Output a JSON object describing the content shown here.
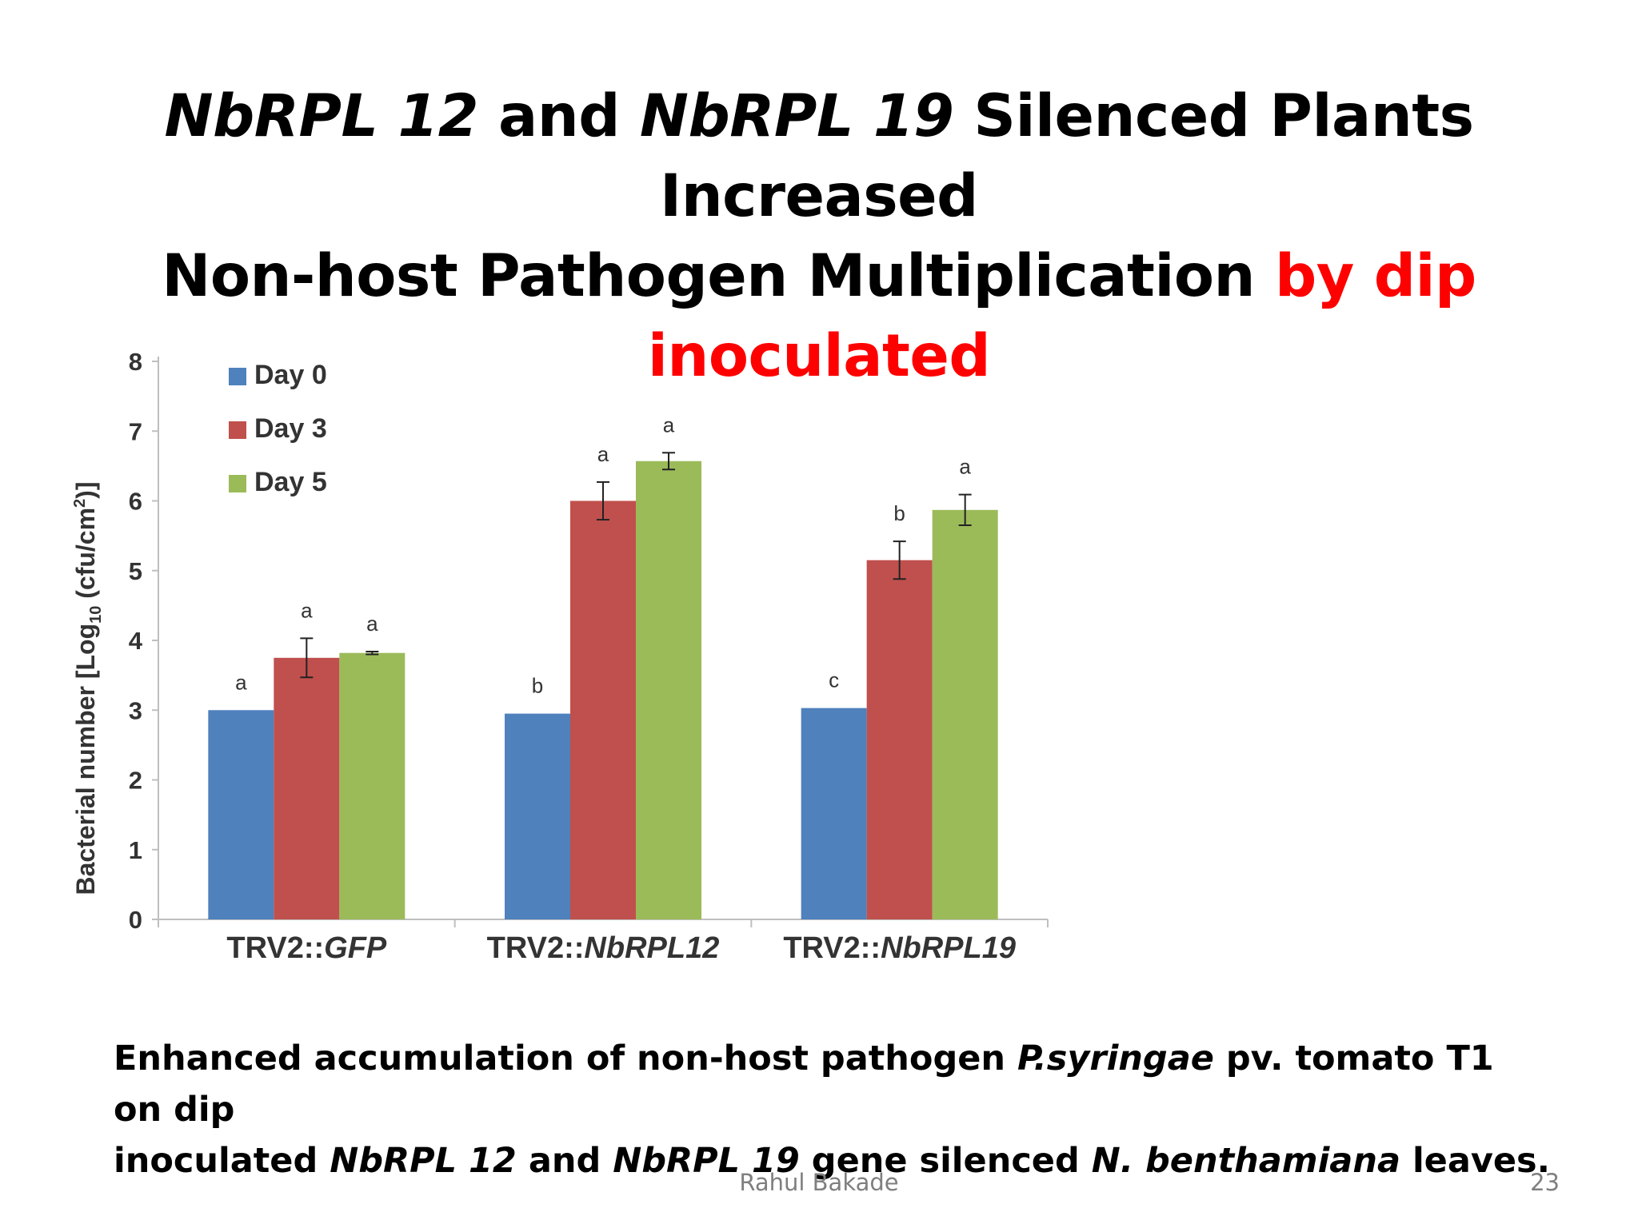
{
  "slide": {
    "title_line1": [
      {
        "text": "NbRPL 12",
        "italic": true,
        "red": false
      },
      {
        "text": " and ",
        "italic": false,
        "red": false
      },
      {
        "text": "NbRPL 19",
        "italic": true,
        "red": false
      },
      {
        "text": " Silenced Plants Increased",
        "italic": false,
        "red": false
      }
    ],
    "title_line2": [
      {
        "text": "Non-host Pathogen Multiplication ",
        "italic": false,
        "red": false
      },
      {
        "text": "by dip inoculated",
        "italic": false,
        "red": true
      }
    ],
    "caption_line1": [
      {
        "text": "Enhanced accumulation of non-host pathogen ",
        "italic": false
      },
      {
        "text": "P.syringae",
        "italic": true
      },
      {
        "text": " pv. tomato T1 on dip",
        "italic": false
      }
    ],
    "caption_line2": [
      {
        "text": "inoculated ",
        "italic": false
      },
      {
        "text": "NbRPL 12",
        "italic": true
      },
      {
        "text": " and ",
        "italic": false
      },
      {
        "text": "NbRPL 19",
        "italic": true
      },
      {
        "text": " gene silenced ",
        "italic": false
      },
      {
        "text": "N. benthamiana",
        "italic": true
      },
      {
        "text": " leaves.",
        "italic": false
      }
    ],
    "author": "Rahul Bakade",
    "page_number": "23"
  },
  "chart_data": {
    "type": "bar",
    "ylabel_parts": [
      {
        "text": "Bacterial number [Log",
        "sub": false,
        "sup": false
      },
      {
        "text": "10",
        "sub": true,
        "sup": false
      },
      {
        "text": " (cfu/cm",
        "sub": false,
        "sup": false
      },
      {
        "text": "2",
        "sub": false,
        "sup": true
      },
      {
        "text": ")]",
        "sub": false,
        "sup": false
      }
    ],
    "ylim": [
      0,
      8
    ],
    "yticks": [
      "0",
      "1",
      "2",
      "3",
      "4",
      "5",
      "6",
      "7",
      "8"
    ],
    "categories": [
      {
        "prefix": "TRV2::",
        "name": "GFP"
      },
      {
        "prefix": "TRV2::",
        "name": "NbRPL12"
      },
      {
        "prefix": "TRV2::",
        "name": "NbRPL19"
      }
    ],
    "legend_position": "top-left",
    "grid": false,
    "series": [
      {
        "name": "Day 0",
        "color": "#4f81bd",
        "values": [
          3.0,
          2.95,
          3.03
        ],
        "errors": [
          0,
          0,
          0
        ],
        "letters": [
          "a",
          "b",
          "c"
        ]
      },
      {
        "name": "Day 3",
        "color": "#c0504d",
        "values": [
          3.75,
          6.0,
          5.15
        ],
        "errors": [
          0.28,
          0.27,
          0.27
        ],
        "letters": [
          "a",
          "a",
          "b"
        ]
      },
      {
        "name": "Day 5",
        "color": "#9bbb59",
        "values": [
          3.82,
          6.57,
          5.87
        ],
        "errors": [
          0.02,
          0.12,
          0.22
        ],
        "letters": [
          "a",
          "a",
          "a"
        ]
      }
    ]
  }
}
